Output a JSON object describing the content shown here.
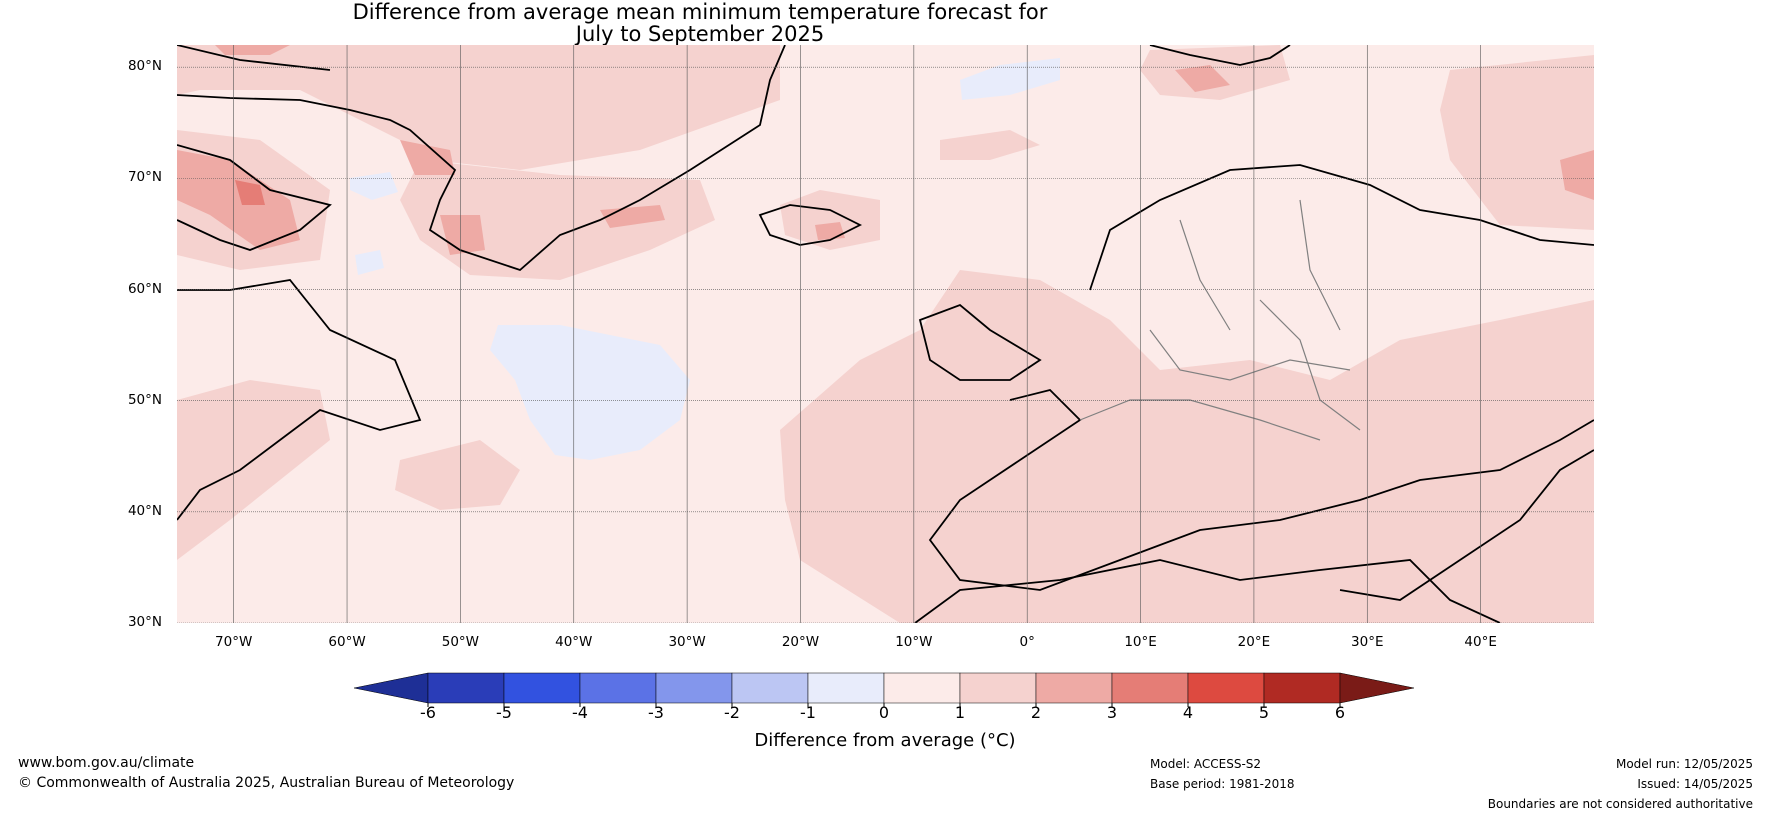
{
  "title_line1": "Difference from average mean minimum temperature forecast for",
  "title_line2": "July to September 2025",
  "lat_labels": [
    "80°N",
    "70°N",
    "60°N",
    "50°N",
    "40°N",
    "30°N"
  ],
  "lon_labels": [
    "70°W",
    "60°W",
    "50°W",
    "40°W",
    "30°W",
    "20°W",
    "10°W",
    "0°",
    "10°E",
    "20°E",
    "30°E",
    "40°E"
  ],
  "colorbar": {
    "ticks": [
      "-6",
      "-5",
      "-4",
      "-3",
      "-2",
      "-1",
      "0",
      "1",
      "2",
      "3",
      "4",
      "5",
      "6"
    ],
    "label": "Difference from average (°C)",
    "colors": [
      "#1e2f96",
      "#2a3db8",
      "#3252e0",
      "#5b72e6",
      "#8396ec",
      "#bcc6f3",
      "#e8ecfb",
      "#fcebe9",
      "#f5d2cf",
      "#eeaaa5",
      "#e57d76",
      "#dd4a40",
      "#b02a23",
      "#7a1b17"
    ]
  },
  "palette": {
    "land_border": "#000000",
    "country_border": "#808080",
    "grid": "#555555"
  },
  "footer": {
    "website": "www.bom.gov.au/climate",
    "copyright": "© Commonwealth of Australia 2025, Australian Bureau of Meteorology",
    "model": "Model: ACCESS-S2",
    "base_period": "Base period: 1981-2018",
    "model_run": "Model run: 12/05/2025",
    "issued": "Issued: 14/05/2025",
    "disclaimer": "Boundaries are not considered authoritative"
  }
}
